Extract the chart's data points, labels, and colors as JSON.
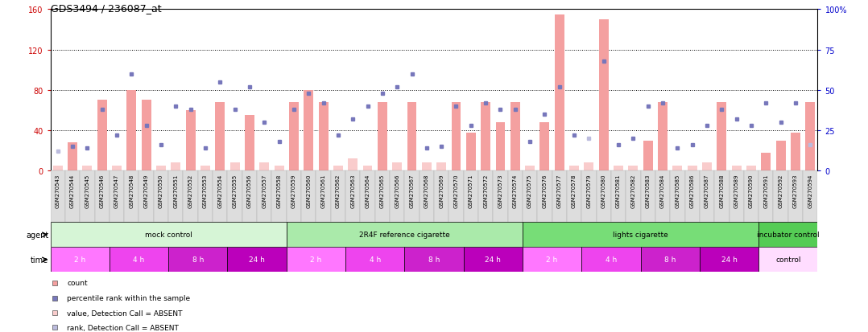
{
  "title": "GDS3494 / 236087_at",
  "samples": [
    "GSM270543",
    "GSM270544",
    "GSM270545",
    "GSM270546",
    "GSM270547",
    "GSM270548",
    "GSM270549",
    "GSM270550",
    "GSM270551",
    "GSM270552",
    "GSM270553",
    "GSM270554",
    "GSM270555",
    "GSM270556",
    "GSM270557",
    "GSM270558",
    "GSM270559",
    "GSM270560",
    "GSM270561",
    "GSM270562",
    "GSM270563",
    "GSM270564",
    "GSM270565",
    "GSM270566",
    "GSM270567",
    "GSM270568",
    "GSM270569",
    "GSM270570",
    "GSM270571",
    "GSM270572",
    "GSM270573",
    "GSM270574",
    "GSM270575",
    "GSM270576",
    "GSM270577",
    "GSM270578",
    "GSM270579",
    "GSM270580",
    "GSM270581",
    "GSM270582",
    "GSM270583",
    "GSM270584",
    "GSM270585",
    "GSM270586",
    "GSM270587",
    "GSM270588",
    "GSM270589",
    "GSM270590",
    "GSM270591",
    "GSM270592",
    "GSM270593",
    "GSM270594"
  ],
  "bar_values": [
    5,
    28,
    5,
    70,
    5,
    80,
    70,
    5,
    8,
    60,
    5,
    68,
    8,
    55,
    8,
    5,
    68,
    80,
    68,
    5,
    12,
    5,
    68,
    8,
    68,
    8,
    8,
    68,
    38,
    68,
    48,
    68,
    5,
    48,
    155,
    5,
    8,
    150,
    5,
    5,
    30,
    68,
    5,
    5,
    8,
    68,
    5,
    5,
    18,
    30,
    38,
    68
  ],
  "bar_absent": [
    true,
    false,
    true,
    false,
    true,
    false,
    false,
    true,
    true,
    false,
    true,
    false,
    true,
    false,
    true,
    true,
    false,
    false,
    false,
    true,
    true,
    true,
    false,
    true,
    false,
    true,
    true,
    false,
    false,
    false,
    false,
    false,
    true,
    false,
    false,
    true,
    true,
    false,
    true,
    true,
    false,
    false,
    true,
    true,
    true,
    false,
    true,
    true,
    false,
    false,
    false,
    false
  ],
  "rank_values": [
    12,
    15,
    14,
    38,
    22,
    60,
    28,
    16,
    40,
    38,
    14,
    55,
    38,
    52,
    30,
    18,
    38,
    48,
    42,
    22,
    32,
    40,
    48,
    52,
    60,
    14,
    15,
    40,
    28,
    42,
    38,
    38,
    18,
    35,
    52,
    22,
    20,
    68,
    16,
    20,
    40,
    42,
    14,
    16,
    28,
    38,
    32,
    28,
    42,
    30,
    42,
    16
  ],
  "rank_absent": [
    true,
    false,
    false,
    false,
    false,
    false,
    false,
    false,
    false,
    false,
    false,
    false,
    false,
    false,
    false,
    false,
    false,
    false,
    false,
    false,
    false,
    false,
    false,
    false,
    false,
    false,
    false,
    false,
    false,
    false,
    false,
    false,
    false,
    false,
    false,
    false,
    true,
    false,
    false,
    false,
    false,
    false,
    false,
    false,
    false,
    false,
    false,
    false,
    false,
    false,
    false,
    true
  ],
  "agent_groups": [
    {
      "label": "mock control",
      "start": 0,
      "end": 16,
      "color": "#d6f5d6"
    },
    {
      "label": "2R4F reference cigarette",
      "start": 16,
      "end": 32,
      "color": "#aaeaaa"
    },
    {
      "label": "lights cigarette",
      "start": 32,
      "end": 48,
      "color": "#77dd77"
    },
    {
      "label": "incubator control",
      "start": 48,
      "end": 52,
      "color": "#55cc55"
    }
  ],
  "time_groups": [
    {
      "label": "2 h",
      "start": 0,
      "end": 4,
      "color": "#ff77ff"
    },
    {
      "label": "4 h",
      "start": 4,
      "end": 8,
      "color": "#ee44ee"
    },
    {
      "label": "8 h",
      "start": 8,
      "end": 12,
      "color": "#cc22cc"
    },
    {
      "label": "24 h",
      "start": 12,
      "end": 16,
      "color": "#bb00bb"
    },
    {
      "label": "2 h",
      "start": 16,
      "end": 20,
      "color": "#ff77ff"
    },
    {
      "label": "4 h",
      "start": 20,
      "end": 24,
      "color": "#ee44ee"
    },
    {
      "label": "8 h",
      "start": 24,
      "end": 28,
      "color": "#cc22cc"
    },
    {
      "label": "24 h",
      "start": 28,
      "end": 32,
      "color": "#bb00bb"
    },
    {
      "label": "2 h",
      "start": 32,
      "end": 36,
      "color": "#ff77ff"
    },
    {
      "label": "4 h",
      "start": 36,
      "end": 40,
      "color": "#ee44ee"
    },
    {
      "label": "8 h",
      "start": 40,
      "end": 44,
      "color": "#cc22cc"
    },
    {
      "label": "24 h",
      "start": 44,
      "end": 48,
      "color": "#bb00bb"
    },
    {
      "label": "control",
      "start": 48,
      "end": 52,
      "color": "#ffddff"
    }
  ],
  "ylim_left": [
    0,
    160
  ],
  "ylim_right": [
    0,
    100
  ],
  "yticks_left": [
    0,
    40,
    80,
    120,
    160
  ],
  "yticks_right": [
    0,
    25,
    50,
    75,
    100
  ],
  "bar_color_present": "#f4a0a0",
  "bar_color_absent": "#f9cccc",
  "rank_color_present": "#7777bb",
  "rank_color_absent": "#bbbbdd",
  "left_axis_color": "#cc0000",
  "right_axis_color": "#0000cc",
  "title_fontsize": 9,
  "tick_fontsize": 7,
  "sample_fontsize": 5
}
